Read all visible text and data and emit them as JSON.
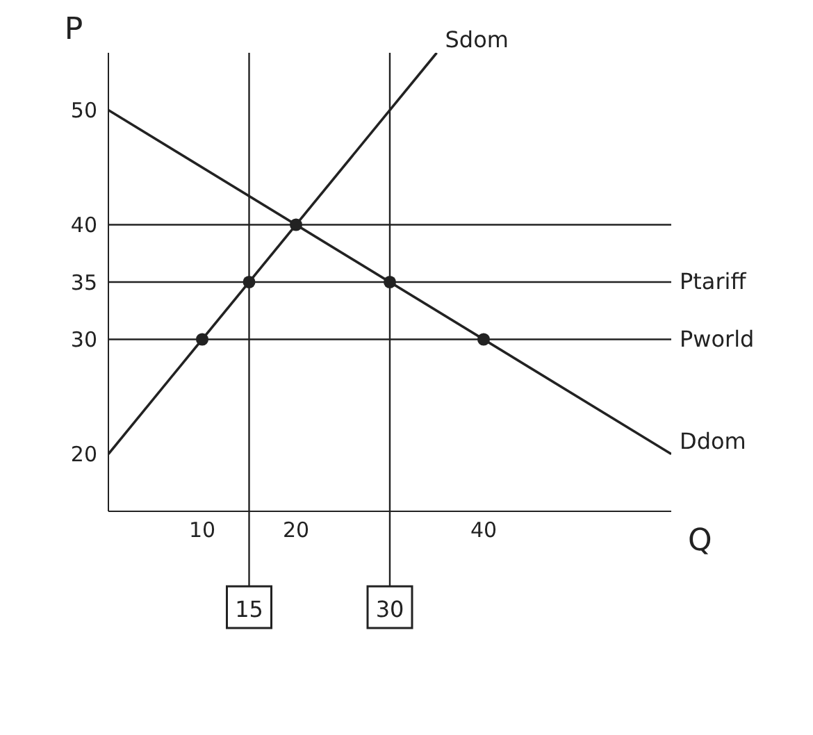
{
  "chart_data": {
    "type": "line",
    "xlabel": "Q",
    "ylabel": "P",
    "xlim": [
      0,
      60
    ],
    "xticks": [
      10,
      20,
      40
    ],
    "ylim": [
      15,
      55
    ],
    "yticks": [
      20,
      30,
      35,
      40,
      50
    ],
    "series": [
      {
        "name": "Sdom",
        "color": "#222222",
        "x": [
          0,
          35
        ],
        "values": [
          20,
          55
        ],
        "marker": "none"
      },
      {
        "name": "Ddom",
        "color": "#222222",
        "x": [
          0,
          60
        ],
        "values": [
          50,
          20
        ],
        "marker": "none"
      },
      {
        "type": "scatter",
        "color": "#222222",
        "x": [
          10,
          15,
          20,
          30,
          40
        ],
        "values": [
          30,
          35,
          40,
          35,
          30
        ],
        "marker": "circle"
      }
    ],
    "ref_lines": [
      {
        "axis": "y",
        "value": 40,
        "label": null
      },
      {
        "axis": "y",
        "value": 35,
        "label": "Ptariff"
      },
      {
        "axis": "y",
        "value": 30,
        "label": "Pworld"
      },
      {
        "axis": "x",
        "value": 15,
        "label": "15"
      },
      {
        "axis": "x",
        "value": 30,
        "label": "30"
      }
    ],
    "grid": false,
    "legend": false
  }
}
